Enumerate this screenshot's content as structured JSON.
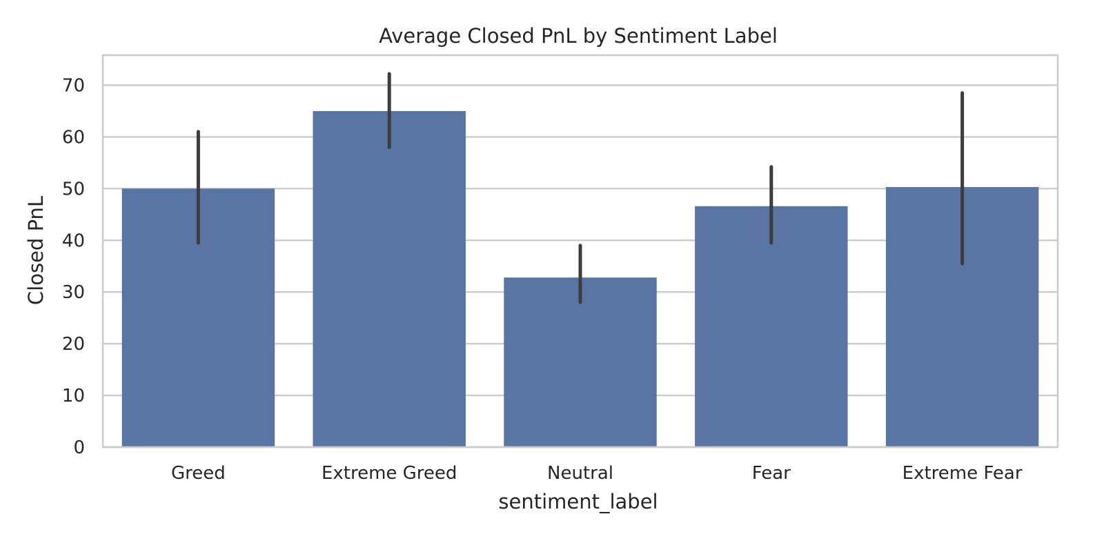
{
  "chart_data": {
    "type": "bar",
    "title": "Average Closed PnL by Sentiment Label",
    "xlabel": "sentiment_label",
    "ylabel": "Closed PnL",
    "categories": [
      "Greed",
      "Extreme Greed",
      "Neutral",
      "Fear",
      "Extreme Fear"
    ],
    "values": [
      50.0,
      65.0,
      32.8,
      46.6,
      50.3
    ],
    "error_low": [
      39.5,
      58.0,
      28.0,
      39.5,
      35.5
    ],
    "error_high": [
      61.0,
      72.2,
      39.0,
      54.2,
      68.5
    ],
    "ylim": [
      0,
      75.8
    ],
    "yticks": [
      0,
      10,
      20,
      30,
      40,
      50,
      60,
      70
    ],
    "grid": "horizontal",
    "bar_color": "#5975a4",
    "error_color": "#3d3d3d",
    "grid_color": "#cccccc",
    "text_color": "#262626"
  }
}
